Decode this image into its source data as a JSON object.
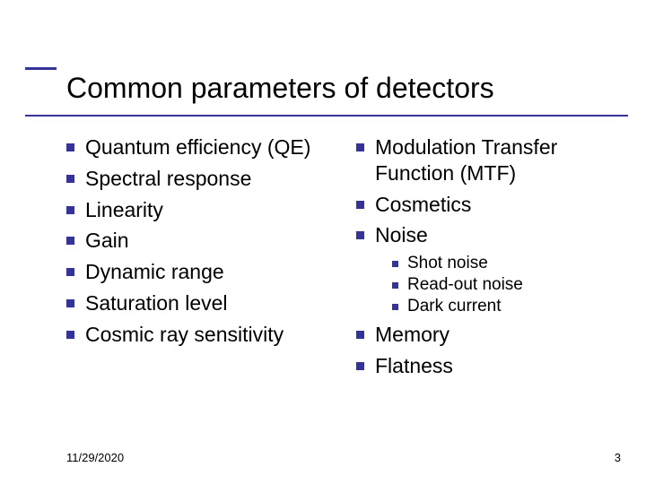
{
  "colors": {
    "accent": "#333399",
    "text": "#000000",
    "background": "#ffffff"
  },
  "typography": {
    "title_fontsize": 32,
    "body_fontsize": 23,
    "sub_fontsize": 19,
    "footer_fontsize": 13,
    "family": "Verdana"
  },
  "title": "Common parameters of detectors",
  "left_col": [
    "Quantum efficiency (QE)",
    "Spectral response",
    "Linearity",
    "Gain",
    "Dynamic range",
    "Saturation level",
    "Cosmic ray sensitivity"
  ],
  "right_col": [
    {
      "text": "Modulation Transfer Function (MTF)"
    },
    {
      "text": "Cosmetics"
    },
    {
      "text": "Noise",
      "sub": [
        "Shot noise",
        "Read-out noise",
        "Dark current"
      ]
    },
    {
      "text": "Memory"
    },
    {
      "text": "Flatness"
    }
  ],
  "footer": {
    "date": "11/29/2020",
    "page": "3"
  }
}
